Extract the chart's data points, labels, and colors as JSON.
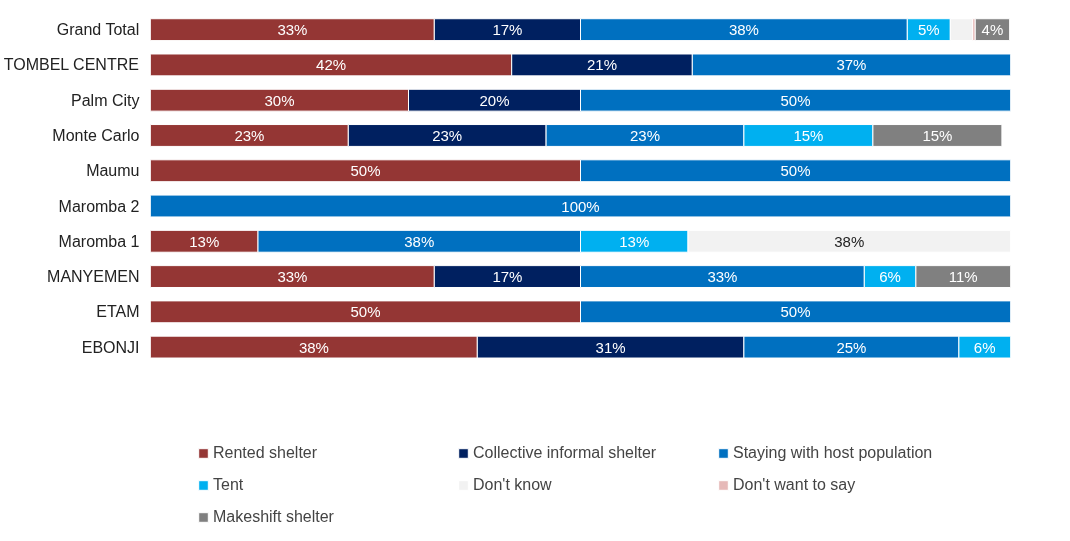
{
  "chart_data": {
    "type": "bar",
    "orientation": "horizontal",
    "stacked": true,
    "legend": "bottom",
    "grid": false,
    "categories": [
      "Grand Total",
      "TOMBEL CENTRE",
      "Palm City",
      "Monte Carlo",
      "Maumu",
      "Maromba 2",
      "Maromba 1",
      "MANYEMEN",
      "ETAM",
      "EBONJI"
    ],
    "series": [
      {
        "name": "Rented shelter",
        "color": "#943634",
        "values": [
          33,
          42,
          30,
          23,
          50,
          null,
          12.5,
          33,
          50,
          38
        ],
        "value_labels": [
          "33%",
          "42%",
          "30%",
          "23%",
          "50%",
          null,
          "13%",
          "33%",
          "50%",
          "38%"
        ]
      },
      {
        "name": "Collective informal shelter",
        "color": "#002060",
        "values": [
          17,
          21,
          20,
          23,
          null,
          null,
          null,
          17,
          null,
          31
        ],
        "value_labels": [
          "17%",
          "21%",
          "20%",
          "23%",
          null,
          null,
          null,
          "17%",
          null,
          "31%"
        ]
      },
      {
        "name": "Staying with host population",
        "color": "#0070c0",
        "values": [
          38,
          37,
          50,
          23,
          50,
          100,
          37.5,
          33,
          50,
          25
        ],
        "value_labels": [
          "38%",
          "37%",
          "50%",
          "23%",
          "50%",
          "100%",
          "38%",
          "33%",
          "50%",
          "25%"
        ]
      },
      {
        "name": "Tent",
        "color": "#00b0f0",
        "values": [
          5,
          null,
          null,
          15,
          null,
          null,
          12.5,
          6,
          null,
          6
        ],
        "value_labels": [
          "5%",
          null,
          null,
          "15%",
          null,
          null,
          "13%",
          "6%",
          null,
          "6%"
        ]
      },
      {
        "name": "Don't know",
        "color": "#f2f2f2",
        "values": [
          2.6,
          null,
          null,
          null,
          null,
          null,
          37.5,
          null,
          null,
          null
        ],
        "value_labels": [
          null,
          null,
          null,
          null,
          null,
          null,
          "38%",
          null,
          null,
          null
        ]
      },
      {
        "name": "Don't want to say",
        "color": "#e6b9b8",
        "values": [
          0.3,
          null,
          null,
          null,
          null,
          null,
          null,
          null,
          null,
          null
        ],
        "value_labels": [
          null,
          null,
          null,
          null,
          null,
          null,
          null,
          null,
          null,
          null
        ]
      },
      {
        "name": "Makeshift shelter",
        "color": "#808080",
        "values": [
          4,
          null,
          null,
          15,
          null,
          null,
          null,
          11,
          null,
          null
        ],
        "value_labels": [
          "4%",
          null,
          null,
          "15%",
          null,
          null,
          null,
          "11%",
          null,
          null
        ]
      }
    ]
  }
}
